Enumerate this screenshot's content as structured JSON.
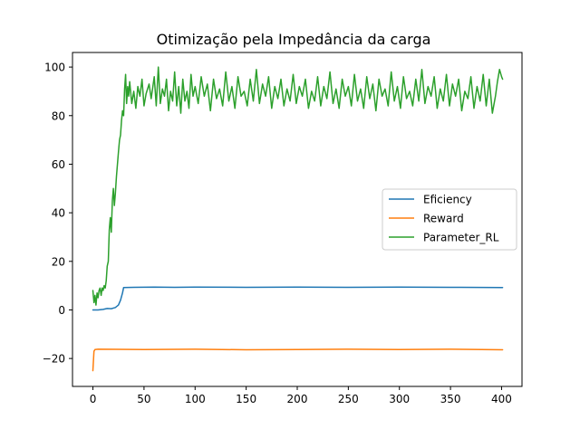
{
  "chart_data": {
    "type": "line",
    "title": "Otimização pela Impedância da carga",
    "xlabel": "",
    "ylabel": "",
    "xlim": [
      -20,
      420
    ],
    "ylim": [
      -31.5,
      106
    ],
    "xticks": [
      0,
      50,
      100,
      150,
      200,
      250,
      300,
      350,
      400
    ],
    "yticks": [
      -20,
      0,
      20,
      40,
      60,
      80,
      100
    ],
    "xtick_labels": [
      "0",
      "50",
      "100",
      "150",
      "200",
      "250",
      "300",
      "350",
      "400"
    ],
    "ytick_labels": [
      "−20",
      "0",
      "20",
      "40",
      "60",
      "80",
      "100"
    ],
    "grid": false,
    "legend_position": "center-right",
    "series": [
      {
        "name": "Eficiency",
        "color": "#1f77b4",
        "points": [
          [
            0,
            0
          ],
          [
            5,
            0
          ],
          [
            10,
            0.2
          ],
          [
            14,
            0.6
          ],
          [
            18,
            0.5
          ],
          [
            22,
            1
          ],
          [
            25,
            2
          ],
          [
            27,
            4
          ],
          [
            29,
            7
          ],
          [
            30,
            9.2
          ],
          [
            40,
            9.3
          ],
          [
            60,
            9.4
          ],
          [
            80,
            9.3
          ],
          [
            100,
            9.4
          ],
          [
            150,
            9.3
          ],
          [
            200,
            9.4
          ],
          [
            250,
            9.3
          ],
          [
            300,
            9.4
          ],
          [
            350,
            9.3
          ],
          [
            401,
            9.2
          ]
        ]
      },
      {
        "name": "Reward",
        "color": "#ff7f0e",
        "points": [
          [
            0,
            -25
          ],
          [
            1,
            -17
          ],
          [
            2,
            -16.3
          ],
          [
            5,
            -16.2
          ],
          [
            50,
            -16.3
          ],
          [
            100,
            -16.2
          ],
          [
            150,
            -16.4
          ],
          [
            200,
            -16.3
          ],
          [
            250,
            -16.2
          ],
          [
            300,
            -16.3
          ],
          [
            350,
            -16.2
          ],
          [
            401,
            -16.4
          ]
        ]
      },
      {
        "name": "Parameter_RL",
        "color": "#2ca02c",
        "points": [
          [
            0,
            8
          ],
          [
            1,
            3
          ],
          [
            2,
            6
          ],
          [
            3,
            2
          ],
          [
            4,
            7
          ],
          [
            5,
            5
          ],
          [
            6,
            8
          ],
          [
            7,
            9
          ],
          [
            8,
            6
          ],
          [
            9,
            9
          ],
          [
            10,
            8
          ],
          [
            11,
            10
          ],
          [
            12,
            9
          ],
          [
            13,
            12
          ],
          [
            14,
            18
          ],
          [
            15,
            20
          ],
          [
            16,
            33
          ],
          [
            17,
            38
          ],
          [
            18,
            32
          ],
          [
            19,
            45
          ],
          [
            20,
            50
          ],
          [
            21,
            43
          ],
          [
            22,
            48
          ],
          [
            23,
            55
          ],
          [
            24,
            60
          ],
          [
            25,
            65
          ],
          [
            26,
            70
          ],
          [
            27,
            72
          ],
          [
            28,
            78
          ],
          [
            29,
            82
          ],
          [
            30,
            80
          ],
          [
            31,
            91
          ],
          [
            32,
            97
          ],
          [
            33,
            85
          ],
          [
            34,
            92
          ],
          [
            35,
            88
          ],
          [
            36,
            94
          ],
          [
            38,
            85
          ],
          [
            40,
            90
          ],
          [
            42,
            83
          ],
          [
            44,
            92
          ],
          [
            46,
            88
          ],
          [
            48,
            95
          ],
          [
            50,
            84
          ],
          [
            52,
            89
          ],
          [
            55,
            93
          ],
          [
            57,
            87
          ],
          [
            60,
            96
          ],
          [
            62,
            84
          ],
          [
            64,
            100
          ],
          [
            66,
            85
          ],
          [
            68,
            91
          ],
          [
            70,
            88
          ],
          [
            72,
            95
          ],
          [
            74,
            82
          ],
          [
            76,
            90
          ],
          [
            78,
            86
          ],
          [
            80,
            98
          ],
          [
            82,
            84
          ],
          [
            84,
            92
          ],
          [
            86,
            81
          ],
          [
            88,
            95
          ],
          [
            90,
            86
          ],
          [
            92,
            90
          ],
          [
            94,
            83
          ],
          [
            96,
            97
          ],
          [
            98,
            88
          ],
          [
            100,
            92
          ],
          [
            103,
            85
          ],
          [
            106,
            96
          ],
          [
            109,
            88
          ],
          [
            112,
            93
          ],
          [
            115,
            82
          ],
          [
            118,
            95
          ],
          [
            121,
            87
          ],
          [
            124,
            91
          ],
          [
            127,
            84
          ],
          [
            130,
            98
          ],
          [
            133,
            86
          ],
          [
            136,
            92
          ],
          [
            139,
            83
          ],
          [
            142,
            96
          ],
          [
            145,
            88
          ],
          [
            148,
            90
          ],
          [
            151,
            84
          ],
          [
            154,
            95
          ],
          [
            157,
            86
          ],
          [
            160,
            99
          ],
          [
            163,
            85
          ],
          [
            166,
            93
          ],
          [
            169,
            88
          ],
          [
            172,
            96
          ],
          [
            175,
            83
          ],
          [
            178,
            92
          ],
          [
            181,
            87
          ],
          [
            184,
            95
          ],
          [
            187,
            84
          ],
          [
            190,
            91
          ],
          [
            193,
            86
          ],
          [
            196,
            97
          ],
          [
            199,
            85
          ],
          [
            202,
            92
          ],
          [
            205,
            88
          ],
          [
            208,
            95
          ],
          [
            211,
            83
          ],
          [
            214,
            90
          ],
          [
            217,
            86
          ],
          [
            220,
            96
          ],
          [
            223,
            84
          ],
          [
            226,
            92
          ],
          [
            229,
            87
          ],
          [
            232,
            98
          ],
          [
            235,
            85
          ],
          [
            238,
            91
          ],
          [
            241,
            83
          ],
          [
            244,
            95
          ],
          [
            247,
            88
          ],
          [
            250,
            92
          ],
          [
            253,
            84
          ],
          [
            256,
            97
          ],
          [
            259,
            86
          ],
          [
            262,
            91
          ],
          [
            265,
            83
          ],
          [
            268,
            96
          ],
          [
            271,
            87
          ],
          [
            274,
            93
          ],
          [
            277,
            82
          ],
          [
            280,
            95
          ],
          [
            283,
            88
          ],
          [
            286,
            91
          ],
          [
            289,
            84
          ],
          [
            292,
            98
          ],
          [
            295,
            86
          ],
          [
            298,
            92
          ],
          [
            301,
            83
          ],
          [
            304,
            96
          ],
          [
            307,
            87
          ],
          [
            310,
            90
          ],
          [
            313,
            84
          ],
          [
            316,
            95
          ],
          [
            319,
            86
          ],
          [
            322,
            99
          ],
          [
            325,
            85
          ],
          [
            328,
            92
          ],
          [
            331,
            88
          ],
          [
            334,
            96
          ],
          [
            337,
            83
          ],
          [
            340,
            91
          ],
          [
            343,
            86
          ],
          [
            346,
            97
          ],
          [
            349,
            84
          ],
          [
            352,
            93
          ],
          [
            355,
            88
          ],
          [
            358,
            95
          ],
          [
            361,
            82
          ],
          [
            364,
            90
          ],
          [
            367,
            87
          ],
          [
            370,
            96
          ],
          [
            373,
            83
          ],
          [
            376,
            92
          ],
          [
            379,
            86
          ],
          [
            382,
            97
          ],
          [
            385,
            84
          ],
          [
            388,
            95
          ],
          [
            391,
            81
          ],
          [
            394,
            88
          ],
          [
            396,
            94
          ],
          [
            398,
            99
          ],
          [
            400,
            96
          ],
          [
            401,
            95
          ]
        ]
      }
    ]
  }
}
